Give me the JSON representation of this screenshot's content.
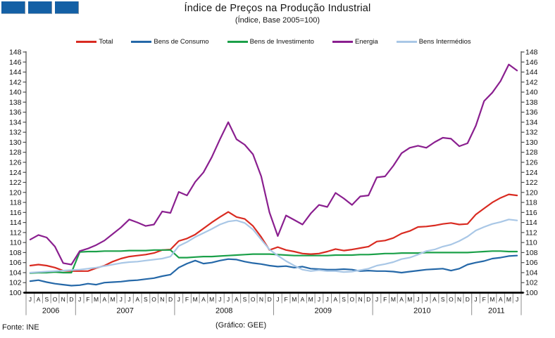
{
  "logo": {
    "color": "#1460a5",
    "square_count": 3
  },
  "footer": {
    "source": "Fonte: INE",
    "credit": "(Gráfico: GEE)"
  },
  "axis_color": "#4d4d4d",
  "chart_data": {
    "type": "line",
    "title": "Índice de Preços na Produção Industrial",
    "subtitle": "(Índice, Base 2005=100)",
    "ylim": [
      100,
      148
    ],
    "ytick_step": 2,
    "grid": false,
    "legend_position": "top",
    "x_start": "Jul 2006",
    "x_end": "Jun 2011",
    "month_labels": [
      "J",
      "A",
      "S",
      "O",
      "N",
      "D",
      "J",
      "F",
      "M",
      "A",
      "M",
      "J",
      "J",
      "A",
      "S",
      "O",
      "N",
      "D",
      "J",
      "F",
      "M",
      "A",
      "M",
      "J",
      "J",
      "A",
      "S",
      "O",
      "N",
      "D",
      "J",
      "F",
      "M",
      "A",
      "M",
      "J",
      "J",
      "A",
      "S",
      "O",
      "N",
      "D",
      "J",
      "F",
      "M",
      "A",
      "M",
      "J",
      "J",
      "A",
      "S",
      "O",
      "N",
      "D",
      "J",
      "F",
      "M",
      "A",
      "M",
      "J"
    ],
    "years": [
      {
        "label": "2006",
        "span": 6
      },
      {
        "label": "2007",
        "span": 12
      },
      {
        "label": "2008",
        "span": 12
      },
      {
        "label": "2009",
        "span": 12
      },
      {
        "label": "2010",
        "span": 12
      },
      {
        "label": "2011",
        "span": 6
      }
    ],
    "series": [
      {
        "name": "Total",
        "color": "#d92b21",
        "values": [
          105.4,
          105.6,
          105.4,
          105.0,
          104.4,
          104.3,
          104.3,
          104.3,
          104.9,
          105.4,
          106.2,
          106.8,
          107.2,
          107.4,
          107.6,
          107.9,
          108.5,
          108.6,
          110.3,
          110.8,
          111.6,
          112.8,
          114.0,
          115.1,
          116.1,
          115.1,
          114.7,
          113.3,
          111.1,
          108.5,
          109.1,
          108.5,
          108.2,
          107.8,
          107.7,
          107.8,
          108.2,
          108.7,
          108.4,
          108.6,
          108.9,
          109.2,
          110.2,
          110.4,
          110.9,
          111.8,
          112.3,
          113.1,
          113.2,
          113.4,
          113.7,
          113.9,
          113.6,
          113.7,
          115.6,
          116.8,
          118.0,
          118.9,
          119.6,
          119.4
        ]
      },
      {
        "name": "Bens de Consumo",
        "color": "#2568a8",
        "values": [
          102.3,
          102.5,
          102.1,
          101.8,
          101.6,
          101.4,
          101.5,
          101.8,
          101.6,
          102.0,
          102.1,
          102.2,
          102.4,
          102.5,
          102.7,
          102.9,
          103.3,
          103.6,
          105.0,
          105.8,
          106.4,
          105.8,
          106.0,
          106.4,
          106.7,
          106.6,
          106.2,
          105.9,
          105.7,
          105.4,
          105.2,
          105.3,
          105.0,
          105.2,
          104.8,
          104.7,
          104.6,
          104.6,
          104.7,
          104.6,
          104.3,
          104.4,
          104.3,
          104.3,
          104.2,
          104.0,
          104.2,
          104.4,
          104.6,
          104.7,
          104.8,
          104.4,
          104.8,
          105.6,
          106.0,
          106.3,
          106.8,
          107.0,
          107.3,
          107.4
        ]
      },
      {
        "name": "Bens de Investimento",
        "color": "#1ba049",
        "values": [
          103.9,
          104.0,
          104.0,
          104.1,
          104.0,
          104.0,
          108.1,
          108.2,
          108.2,
          108.3,
          108.3,
          108.3,
          108.4,
          108.4,
          108.4,
          108.5,
          108.5,
          108.5,
          107.0,
          107.0,
          107.1,
          107.2,
          107.2,
          107.3,
          107.4,
          107.5,
          107.6,
          107.7,
          107.7,
          107.7,
          107.6,
          107.5,
          107.4,
          107.4,
          107.4,
          107.4,
          107.4,
          107.5,
          107.5,
          107.5,
          107.6,
          107.6,
          107.7,
          107.8,
          107.8,
          107.9,
          107.9,
          107.9,
          108.0,
          108.0,
          108.0,
          108.0,
          108.0,
          108.0,
          108.1,
          108.2,
          108.3,
          108.3,
          108.2,
          108.2
        ]
      },
      {
        "name": "Energia",
        "color": "#8a1f8f",
        "values": [
          110.6,
          111.5,
          111.0,
          109.2,
          105.9,
          105.6,
          108.3,
          108.8,
          109.5,
          110.4,
          111.7,
          113.0,
          114.6,
          114.0,
          113.3,
          113.6,
          116.2,
          115.9,
          120.1,
          119.4,
          122.1,
          124.0,
          127.0,
          130.6,
          134.0,
          130.6,
          129.5,
          127.6,
          123.2,
          116.0,
          111.3,
          115.4,
          114.5,
          113.6,
          115.8,
          117.5,
          117.1,
          119.9,
          118.8,
          117.5,
          119.2,
          119.4,
          123.0,
          123.2,
          125.3,
          127.8,
          128.9,
          129.3,
          128.9,
          130.0,
          130.9,
          130.7,
          129.2,
          129.8,
          133.3,
          138.2,
          139.9,
          142.2,
          145.5,
          144.3
        ]
      },
      {
        "name": "Bens Intermédios",
        "color": "#a9c7e6",
        "values": [
          104.0,
          104.1,
          104.2,
          104.3,
          104.4,
          104.5,
          104.6,
          104.8,
          105.0,
          105.3,
          105.6,
          105.9,
          106.1,
          106.2,
          106.4,
          106.6,
          106.8,
          107.2,
          109.3,
          110.1,
          111.1,
          111.9,
          112.7,
          113.6,
          114.2,
          114.4,
          113.9,
          112.6,
          110.6,
          108.6,
          107.4,
          106.3,
          105.4,
          104.6,
          104.3,
          104.5,
          104.3,
          104.3,
          104.1,
          104.2,
          104.5,
          104.8,
          105.4,
          105.7,
          106.1,
          106.7,
          107.0,
          107.6,
          108.3,
          108.6,
          109.2,
          109.6,
          110.3,
          111.2,
          112.4,
          113.1,
          113.7,
          114.1,
          114.6,
          114.4
        ]
      }
    ]
  }
}
